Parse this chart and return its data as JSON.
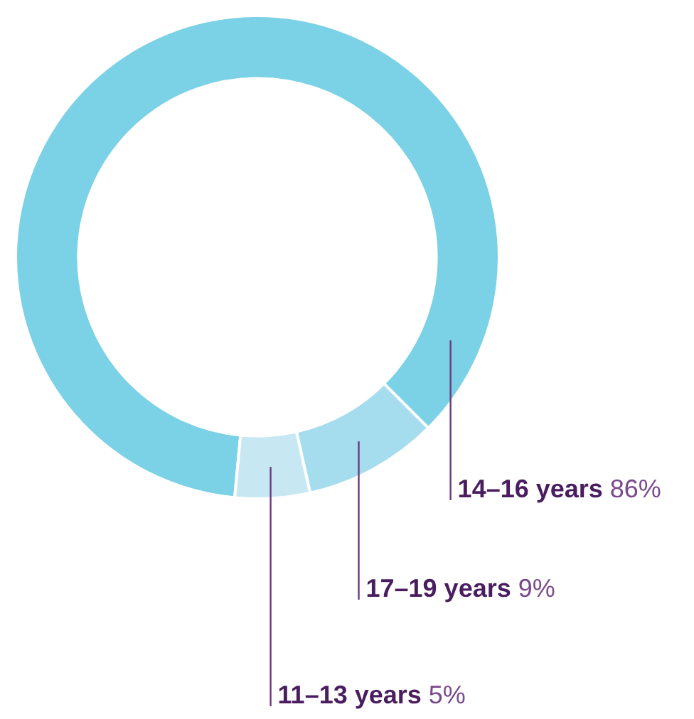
{
  "chart_data": {
    "type": "donut",
    "categories": [
      "14–16 years",
      "17–19 years",
      "11–13 years"
    ],
    "values": [
      86,
      9,
      5
    ],
    "colors": [
      "#7bd1e5",
      "#a5ddee",
      "#c7e8f2"
    ],
    "value_labels": [
      "86%",
      "9%",
      "5%"
    ],
    "legend": false
  }
}
